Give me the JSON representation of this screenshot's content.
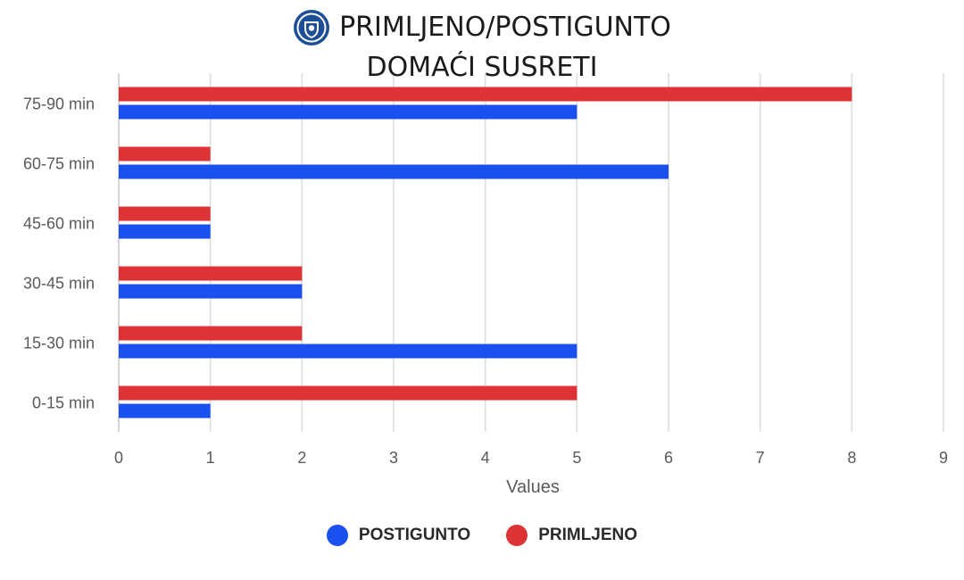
{
  "header": {
    "title_line1": "PRIMLJENO/POSTIGUNTO",
    "title_line2": "DOMAĆI SUSRETI",
    "logo_icon": "club-crest-icon"
  },
  "colors": {
    "postigunto": "#1a4ff0",
    "primljeno": "#dd3236",
    "grid": "#dcdcdc"
  },
  "chart_data": {
    "type": "bar",
    "orientation": "horizontal",
    "title": "PRIMLJENO/POSTIGUNTO DOMAĆI SUSRETI",
    "categories": [
      "75-90 min",
      "60-75 min",
      "45-60 min",
      "30-45 min",
      "15-30 min",
      "0-15 min"
    ],
    "series": [
      {
        "name": "PRIMLJENO",
        "values": [
          8,
          1,
          1,
          2,
          2,
          5
        ]
      },
      {
        "name": "POSTIGUNTO",
        "values": [
          5,
          6,
          1,
          2,
          5,
          1
        ]
      }
    ],
    "xlabel": "Values",
    "ylabel": "",
    "xlim": [
      0,
      9
    ],
    "xticks": [
      0,
      1,
      2,
      3,
      4,
      5,
      6,
      7,
      8,
      9
    ],
    "grid": true,
    "legend_position": "bottom",
    "legend": [
      "POSTIGUNTO",
      "PRIMLJENO"
    ]
  }
}
